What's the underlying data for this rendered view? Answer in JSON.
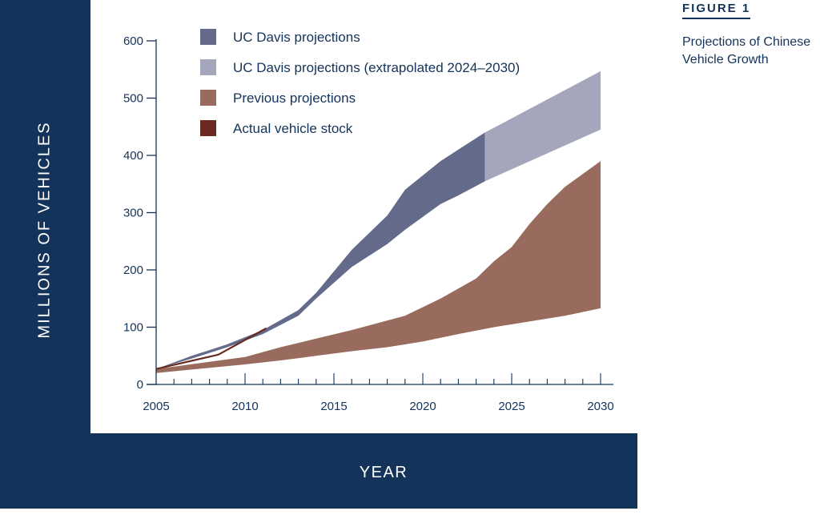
{
  "figure": {
    "label": "FIGURE 1",
    "caption": "Projections of Chinese Vehicle Growth"
  },
  "chart_data": {
    "type": "area",
    "title": "",
    "xlabel": "YEAR",
    "ylabel": "MILLIONS OF VEHICLES",
    "xlim": [
      2005,
      2030
    ],
    "ylim": [
      0,
      600
    ],
    "x_ticks": [
      2005,
      2010,
      2015,
      2020,
      2025,
      2030
    ],
    "x_tick_labels": [
      "2005",
      "2010",
      "2015",
      "2020",
      "2025",
      "2030"
    ],
    "y_ticks": [
      0,
      100,
      200,
      300,
      400,
      500,
      600
    ],
    "y_tick_labels": [
      "0",
      "100",
      "200",
      "300",
      "400",
      "500",
      "600"
    ],
    "grid": false,
    "legend_position": "top-left",
    "legend": [
      {
        "label": "UC Davis projections",
        "color": "#646a89",
        "kind": "band"
      },
      {
        "label": "UC Davis projections (extrapolated 2024–2030)",
        "color": "#a4a6bb",
        "kind": "band"
      },
      {
        "label": "Previous projections",
        "color": "#996b5e",
        "kind": "band"
      },
      {
        "label": "Actual vehicle stock",
        "color": "#6a2a22",
        "kind": "line"
      }
    ],
    "series": [
      {
        "name": "UC Davis projections",
        "color": "#646a89",
        "upper": [
          [
            2005,
            27
          ],
          [
            2007,
            50
          ],
          [
            2009,
            70
          ],
          [
            2011,
            95
          ],
          [
            2013,
            130
          ],
          [
            2014,
            160
          ],
          [
            2016,
            235
          ],
          [
            2018,
            295
          ],
          [
            2019,
            340
          ],
          [
            2021,
            390
          ],
          [
            2022,
            410
          ],
          [
            2023.5,
            440
          ]
        ],
        "lower": [
          [
            2005,
            27
          ],
          [
            2007,
            45
          ],
          [
            2009,
            65
          ],
          [
            2011,
            88
          ],
          [
            2013,
            120
          ],
          [
            2014,
            150
          ],
          [
            2016,
            205
          ],
          [
            2018,
            245
          ],
          [
            2019,
            270
          ],
          [
            2021,
            315
          ],
          [
            2022,
            330
          ],
          [
            2023.5,
            355
          ]
        ]
      },
      {
        "name": "UC Davis projections (extrapolated 2024–2030)",
        "color": "#a4a6bb",
        "upper": [
          [
            2023.5,
            440
          ],
          [
            2030,
            547
          ]
        ],
        "lower": [
          [
            2023.5,
            355
          ],
          [
            2030,
            445
          ]
        ]
      },
      {
        "name": "Previous projections",
        "color": "#996b5e",
        "upper": [
          [
            2005,
            27
          ],
          [
            2010,
            48
          ],
          [
            2012,
            65
          ],
          [
            2014,
            80
          ],
          [
            2016,
            95
          ],
          [
            2019,
            120
          ],
          [
            2021,
            150
          ],
          [
            2023,
            185
          ],
          [
            2024,
            215
          ],
          [
            2025,
            240
          ],
          [
            2026,
            280
          ],
          [
            2027,
            315
          ],
          [
            2028,
            345
          ],
          [
            2030,
            390
          ]
        ],
        "lower": [
          [
            2005,
            20
          ],
          [
            2010,
            35
          ],
          [
            2012,
            42
          ],
          [
            2014,
            50
          ],
          [
            2016,
            58
          ],
          [
            2018,
            65
          ],
          [
            2020,
            75
          ],
          [
            2022,
            88
          ],
          [
            2024,
            100
          ],
          [
            2026,
            110
          ],
          [
            2028,
            120
          ],
          [
            2030,
            133
          ]
        ]
      },
      {
        "name": "Actual vehicle stock",
        "color": "#6a2a22",
        "points": [
          [
            2005,
            27
          ],
          [
            2008.5,
            52
          ],
          [
            2011.2,
            98
          ]
        ]
      }
    ]
  }
}
